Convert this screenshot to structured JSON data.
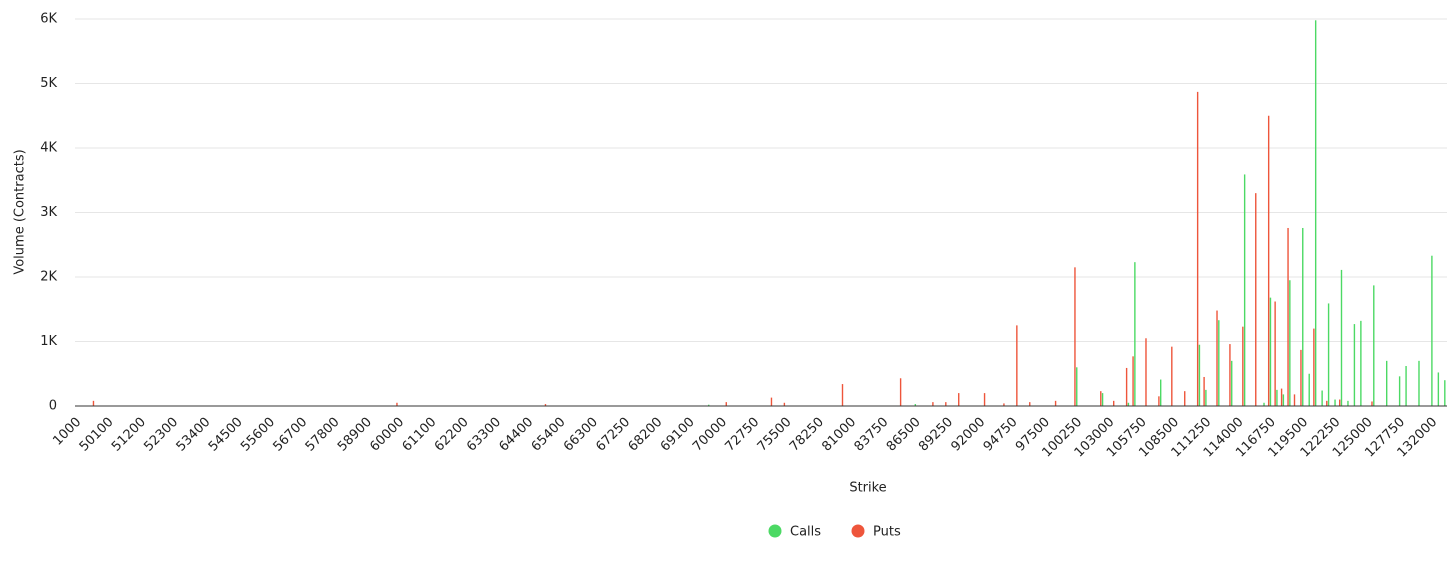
{
  "chart_data": {
    "type": "bar",
    "y_axis_label": "Volume (Contracts)",
    "x_axis_label": "Strike",
    "ylim": [
      0,
      6000
    ],
    "yticks": [
      0,
      {
        "value": 1000,
        "label": "1K"
      },
      {
        "value": 2000,
        "label": "2K"
      },
      {
        "value": 3000,
        "label": "3K"
      },
      {
        "value": 4000,
        "label": "4K"
      },
      {
        "value": 5000,
        "label": "5K"
      },
      {
        "value": 6000,
        "label": "6K"
      }
    ],
    "grid": true,
    "legend": "bottom",
    "categories": [
      "1000",
      null,
      null,
      null,
      null,
      "50100",
      null,
      null,
      null,
      null,
      "51200",
      null,
      null,
      null,
      null,
      "52300",
      null,
      null,
      null,
      null,
      "53400",
      null,
      null,
      null,
      null,
      "54500",
      null,
      null,
      null,
      null,
      "55600",
      null,
      null,
      null,
      null,
      "56700",
      null,
      null,
      null,
      null,
      "57800",
      null,
      null,
      null,
      null,
      "58900",
      null,
      null,
      null,
      null,
      "60000",
      null,
      null,
      null,
      null,
      "61100",
      null,
      null,
      null,
      null,
      "62200",
      null,
      null,
      null,
      null,
      "63300",
      null,
      null,
      null,
      null,
      "64400",
      null,
      null,
      null,
      null,
      "65400",
      null,
      null,
      null,
      null,
      "66300",
      null,
      null,
      null,
      null,
      "67250",
      null,
      null,
      null,
      null,
      "68200",
      null,
      null,
      null,
      null,
      "69100",
      null,
      null,
      null,
      null,
      "70000",
      null,
      null,
      null,
      null,
      "72750",
      null,
      null,
      null,
      null,
      "75500",
      null,
      null,
      null,
      null,
      "78250",
      null,
      null,
      null,
      null,
      "81000",
      null,
      null,
      null,
      null,
      "83750",
      null,
      null,
      null,
      null,
      "86500",
      null,
      null,
      null,
      null,
      "89250",
      null,
      null,
      null,
      null,
      "92000",
      null,
      null,
      null,
      null,
      "94750",
      null,
      null,
      null,
      null,
      "97500",
      null,
      null,
      null,
      null,
      "100250",
      null,
      null,
      null,
      null,
      "103000",
      null,
      null,
      null,
      null,
      "105750",
      null,
      null,
      null,
      null,
      "108500",
      null,
      null,
      null,
      null,
      "111250",
      null,
      null,
      null,
      null,
      "114000",
      null,
      null,
      null,
      null,
      "116750",
      null,
      null,
      null,
      null,
      "119500",
      null,
      null,
      null,
      null,
      "122250",
      null,
      null,
      null,
      null,
      "125000",
      null,
      null,
      null,
      null,
      "127750",
      null,
      null,
      null,
      null,
      "132000",
      null,
      null
    ],
    "series": [
      {
        "name": "Calls",
        "color": "#4cd964",
        "values": [
          0,
          0,
          0,
          0,
          0,
          0,
          0,
          0,
          0,
          0,
          0,
          0,
          0,
          0,
          0,
          0,
          0,
          0,
          0,
          0,
          0,
          0,
          0,
          0,
          0,
          0,
          0,
          0,
          0,
          0,
          0,
          0,
          0,
          0,
          0,
          0,
          0,
          0,
          0,
          0,
          0,
          0,
          0,
          0,
          0,
          0,
          0,
          0,
          0,
          0,
          0,
          0,
          0,
          0,
          0,
          0,
          0,
          0,
          0,
          0,
          0,
          0,
          0,
          0,
          0,
          0,
          0,
          0,
          0,
          0,
          0,
          0,
          0,
          0,
          0,
          0,
          0,
          0,
          0,
          0,
          0,
          0,
          0,
          0,
          0,
          0,
          0,
          0,
          0,
          0,
          0,
          0,
          0,
          0,
          0,
          0,
          0,
          0,
          20,
          0,
          0,
          0,
          0,
          0,
          0,
          0,
          0,
          0,
          0,
          0,
          0,
          0,
          0,
          0,
          0,
          0,
          0,
          0,
          0,
          0,
          0,
          0,
          0,
          0,
          0,
          0,
          0,
          0,
          0,
          0,
          30,
          0,
          0,
          0,
          0,
          0,
          0,
          0,
          0,
          0,
          0,
          0,
          0,
          0,
          0,
          0,
          0,
          0,
          0,
          0,
          0,
          0,
          0,
          0,
          0,
          600,
          0,
          0,
          0,
          200,
          0,
          0,
          0,
          50,
          2230,
          0,
          0,
          0,
          410,
          0,
          0,
          0,
          0,
          0,
          950,
          250,
          0,
          1330,
          0,
          700,
          0,
          3590,
          0,
          0,
          50,
          1680,
          250,
          180,
          1950,
          0,
          2760,
          500,
          5980,
          240,
          1590,
          100,
          2110,
          80,
          1270,
          1320,
          0,
          1870,
          0,
          700,
          0,
          460,
          620,
          0,
          700,
          0,
          2330,
          520,
          400
        ]
      },
      {
        "name": "Puts",
        "color": "#ee553b",
        "values": [
          0,
          0,
          0,
          80,
          0,
          0,
          0,
          0,
          0,
          0,
          0,
          0,
          0,
          0,
          0,
          0,
          0,
          0,
          0,
          0,
          0,
          0,
          0,
          0,
          0,
          0,
          0,
          0,
          0,
          0,
          0,
          0,
          0,
          0,
          0,
          0,
          0,
          0,
          0,
          0,
          0,
          0,
          0,
          0,
          0,
          0,
          0,
          0,
          0,
          0,
          50,
          0,
          0,
          0,
          0,
          0,
          0,
          0,
          0,
          0,
          0,
          0,
          0,
          0,
          0,
          0,
          0,
          0,
          0,
          0,
          0,
          0,
          0,
          30,
          0,
          0,
          0,
          0,
          0,
          0,
          0,
          0,
          0,
          0,
          0,
          0,
          0,
          0,
          0,
          0,
          0,
          0,
          0,
          0,
          0,
          0,
          0,
          0,
          0,
          0,
          0,
          60,
          0,
          0,
          0,
          0,
          0,
          0,
          130,
          0,
          50,
          0,
          0,
          0,
          0,
          0,
          0,
          0,
          0,
          340,
          0,
          0,
          0,
          0,
          0,
          0,
          0,
          0,
          430,
          0,
          0,
          0,
          0,
          60,
          0,
          60,
          0,
          200,
          0,
          0,
          0,
          200,
          0,
          0,
          40,
          0,
          1250,
          0,
          60,
          0,
          0,
          0,
          80,
          0,
          0,
          2150,
          0,
          0,
          0,
          230,
          0,
          80,
          0,
          590,
          770,
          0,
          1050,
          0,
          150,
          0,
          920,
          0,
          230,
          0,
          4870,
          450,
          0,
          1480,
          0,
          960,
          0,
          1230,
          0,
          3300,
          0,
          4500,
          1620,
          270,
          2760,
          180,
          870,
          0,
          1200,
          0,
          80,
          0,
          100,
          0,
          0,
          0,
          0,
          70,
          0,
          0,
          0,
          0,
          0,
          0,
          0,
          0,
          0,
          0,
          0
        ]
      }
    ]
  }
}
